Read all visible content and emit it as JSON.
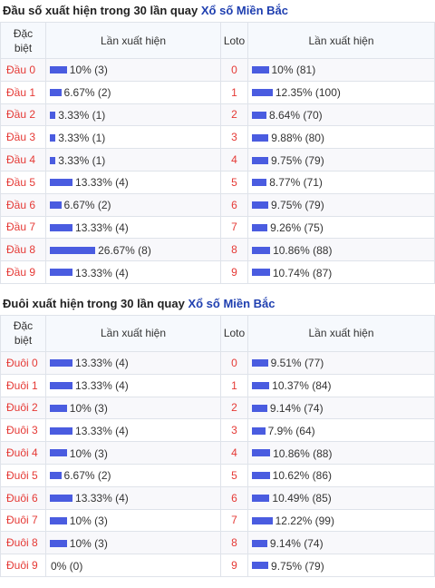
{
  "head_section": {
    "title_prefix": "Đầu số xuất hiện trong 30 lần quay",
    "title_link": "Xổ số Miền Bắc",
    "columns": [
      "Đặc biệt",
      "Lần xuất hiện",
      "Loto",
      "Lần xuất hiện"
    ],
    "rows": [
      {
        "label": "Đầu 0",
        "db_pct": 10,
        "db_text": "10% (3)",
        "loto": "0",
        "loto_pct": 10,
        "loto_text": "10% (81)"
      },
      {
        "label": "Đầu 1",
        "db_pct": 6.67,
        "db_text": "6.67% (2)",
        "loto": "1",
        "loto_pct": 12.35,
        "loto_text": "12.35% (100)"
      },
      {
        "label": "Đầu 2",
        "db_pct": 3.33,
        "db_text": "3.33% (1)",
        "loto": "2",
        "loto_pct": 8.64,
        "loto_text": "8.64% (70)"
      },
      {
        "label": "Đầu 3",
        "db_pct": 3.33,
        "db_text": "3.33% (1)",
        "loto": "3",
        "loto_pct": 9.88,
        "loto_text": "9.88% (80)"
      },
      {
        "label": "Đầu 4",
        "db_pct": 3.33,
        "db_text": "3.33% (1)",
        "loto": "4",
        "loto_pct": 9.75,
        "loto_text": "9.75% (79)"
      },
      {
        "label": "Đầu 5",
        "db_pct": 13.33,
        "db_text": "13.33% (4)",
        "loto": "5",
        "loto_pct": 8.77,
        "loto_text": "8.77% (71)"
      },
      {
        "label": "Đầu 6",
        "db_pct": 6.67,
        "db_text": "6.67% (2)",
        "loto": "6",
        "loto_pct": 9.75,
        "loto_text": "9.75% (79)"
      },
      {
        "label": "Đầu 7",
        "db_pct": 13.33,
        "db_text": "13.33% (4)",
        "loto": "7",
        "loto_pct": 9.26,
        "loto_text": "9.26% (75)"
      },
      {
        "label": "Đầu 8",
        "db_pct": 26.67,
        "db_text": "26.67% (8)",
        "loto": "8",
        "loto_pct": 10.86,
        "loto_text": "10.86% (88)"
      },
      {
        "label": "Đầu 9",
        "db_pct": 13.33,
        "db_text": "13.33% (4)",
        "loto": "9",
        "loto_pct": 10.74,
        "loto_text": "10.74% (87)"
      }
    ]
  },
  "tail_section": {
    "title_prefix": "Đuôi xuất hiện trong 30 lần quay",
    "title_link": "Xổ số Miền Bắc",
    "columns": [
      "Đặc biệt",
      "Lần xuất hiện",
      "Loto",
      "Lần xuất hiện"
    ],
    "rows": [
      {
        "label": "Đuôi 0",
        "db_pct": 13.33,
        "db_text": "13.33% (4)",
        "loto": "0",
        "loto_pct": 9.51,
        "loto_text": "9.51% (77)"
      },
      {
        "label": "Đuôi 1",
        "db_pct": 13.33,
        "db_text": "13.33% (4)",
        "loto": "1",
        "loto_pct": 10.37,
        "loto_text": "10.37% (84)"
      },
      {
        "label": "Đuôi 2",
        "db_pct": 10,
        "db_text": "10% (3)",
        "loto": "2",
        "loto_pct": 9.14,
        "loto_text": "9.14% (74)"
      },
      {
        "label": "Đuôi 3",
        "db_pct": 13.33,
        "db_text": "13.33% (4)",
        "loto": "3",
        "loto_pct": 7.9,
        "loto_text": "7.9% (64)"
      },
      {
        "label": "Đuôi 4",
        "db_pct": 10,
        "db_text": "10% (3)",
        "loto": "4",
        "loto_pct": 10.86,
        "loto_text": "10.86% (88)"
      },
      {
        "label": "Đuôi 5",
        "db_pct": 6.67,
        "db_text": "6.67% (2)",
        "loto": "5",
        "loto_pct": 10.62,
        "loto_text": "10.62% (86)"
      },
      {
        "label": "Đuôi 6",
        "db_pct": 13.33,
        "db_text": "13.33% (4)",
        "loto": "6",
        "loto_pct": 10.49,
        "loto_text": "10.49% (85)"
      },
      {
        "label": "Đuôi 7",
        "db_pct": 10,
        "db_text": "10% (3)",
        "loto": "7",
        "loto_pct": 12.22,
        "loto_text": "12.22% (99)"
      },
      {
        "label": "Đuôi 8",
        "db_pct": 10,
        "db_text": "10% (3)",
        "loto": "8",
        "loto_pct": 9.14,
        "loto_text": "9.14% (74)"
      },
      {
        "label": "Đuôi 9",
        "db_pct": 0,
        "db_text": "0% (0)",
        "loto": "9",
        "loto_pct": 9.75,
        "loto_text": "9.75% (79)"
      }
    ]
  },
  "colors": {
    "bar": "#4a5ce0",
    "label_red": "#e53935",
    "link_blue": "#1f3fb0"
  }
}
